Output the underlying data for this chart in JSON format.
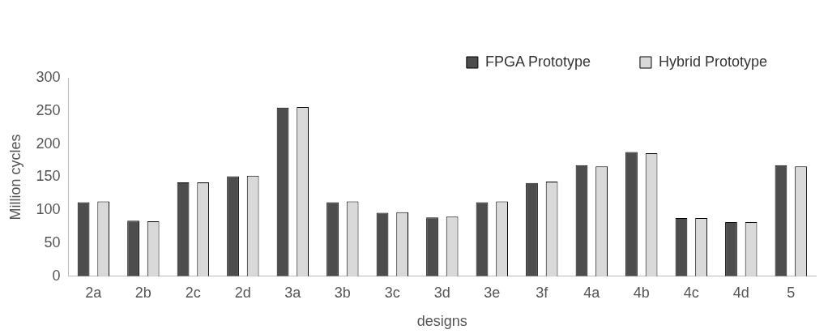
{
  "chart_data": {
    "type": "bar",
    "xlabel": "designs",
    "ylabel": "Million cycles",
    "categories": [
      "2a",
      "2b",
      "2c",
      "2d",
      "3a",
      "3b",
      "3c",
      "3d",
      "3e",
      "3f",
      "4a",
      "4b",
      "4c",
      "4d",
      "5"
    ],
    "series": [
      {
        "name": "FPGA Prototype",
        "color": "#4d4d4d",
        "values": [
          112,
          84,
          142,
          151,
          255,
          112,
          96,
          89,
          112,
          141,
          168,
          188,
          88,
          82,
          168
        ]
      },
      {
        "name": "Hybrid Prototype",
        "color": "#d9d9d9",
        "values": [
          113,
          83,
          142,
          152,
          256,
          113,
          97,
          90,
          113,
          143,
          166,
          186,
          88,
          82,
          166
        ]
      }
    ],
    "ylim": [
      0,
      300
    ],
    "yticks": [
      0,
      50,
      100,
      150,
      200,
      250,
      300
    ],
    "grid": false,
    "legend": "top right"
  }
}
